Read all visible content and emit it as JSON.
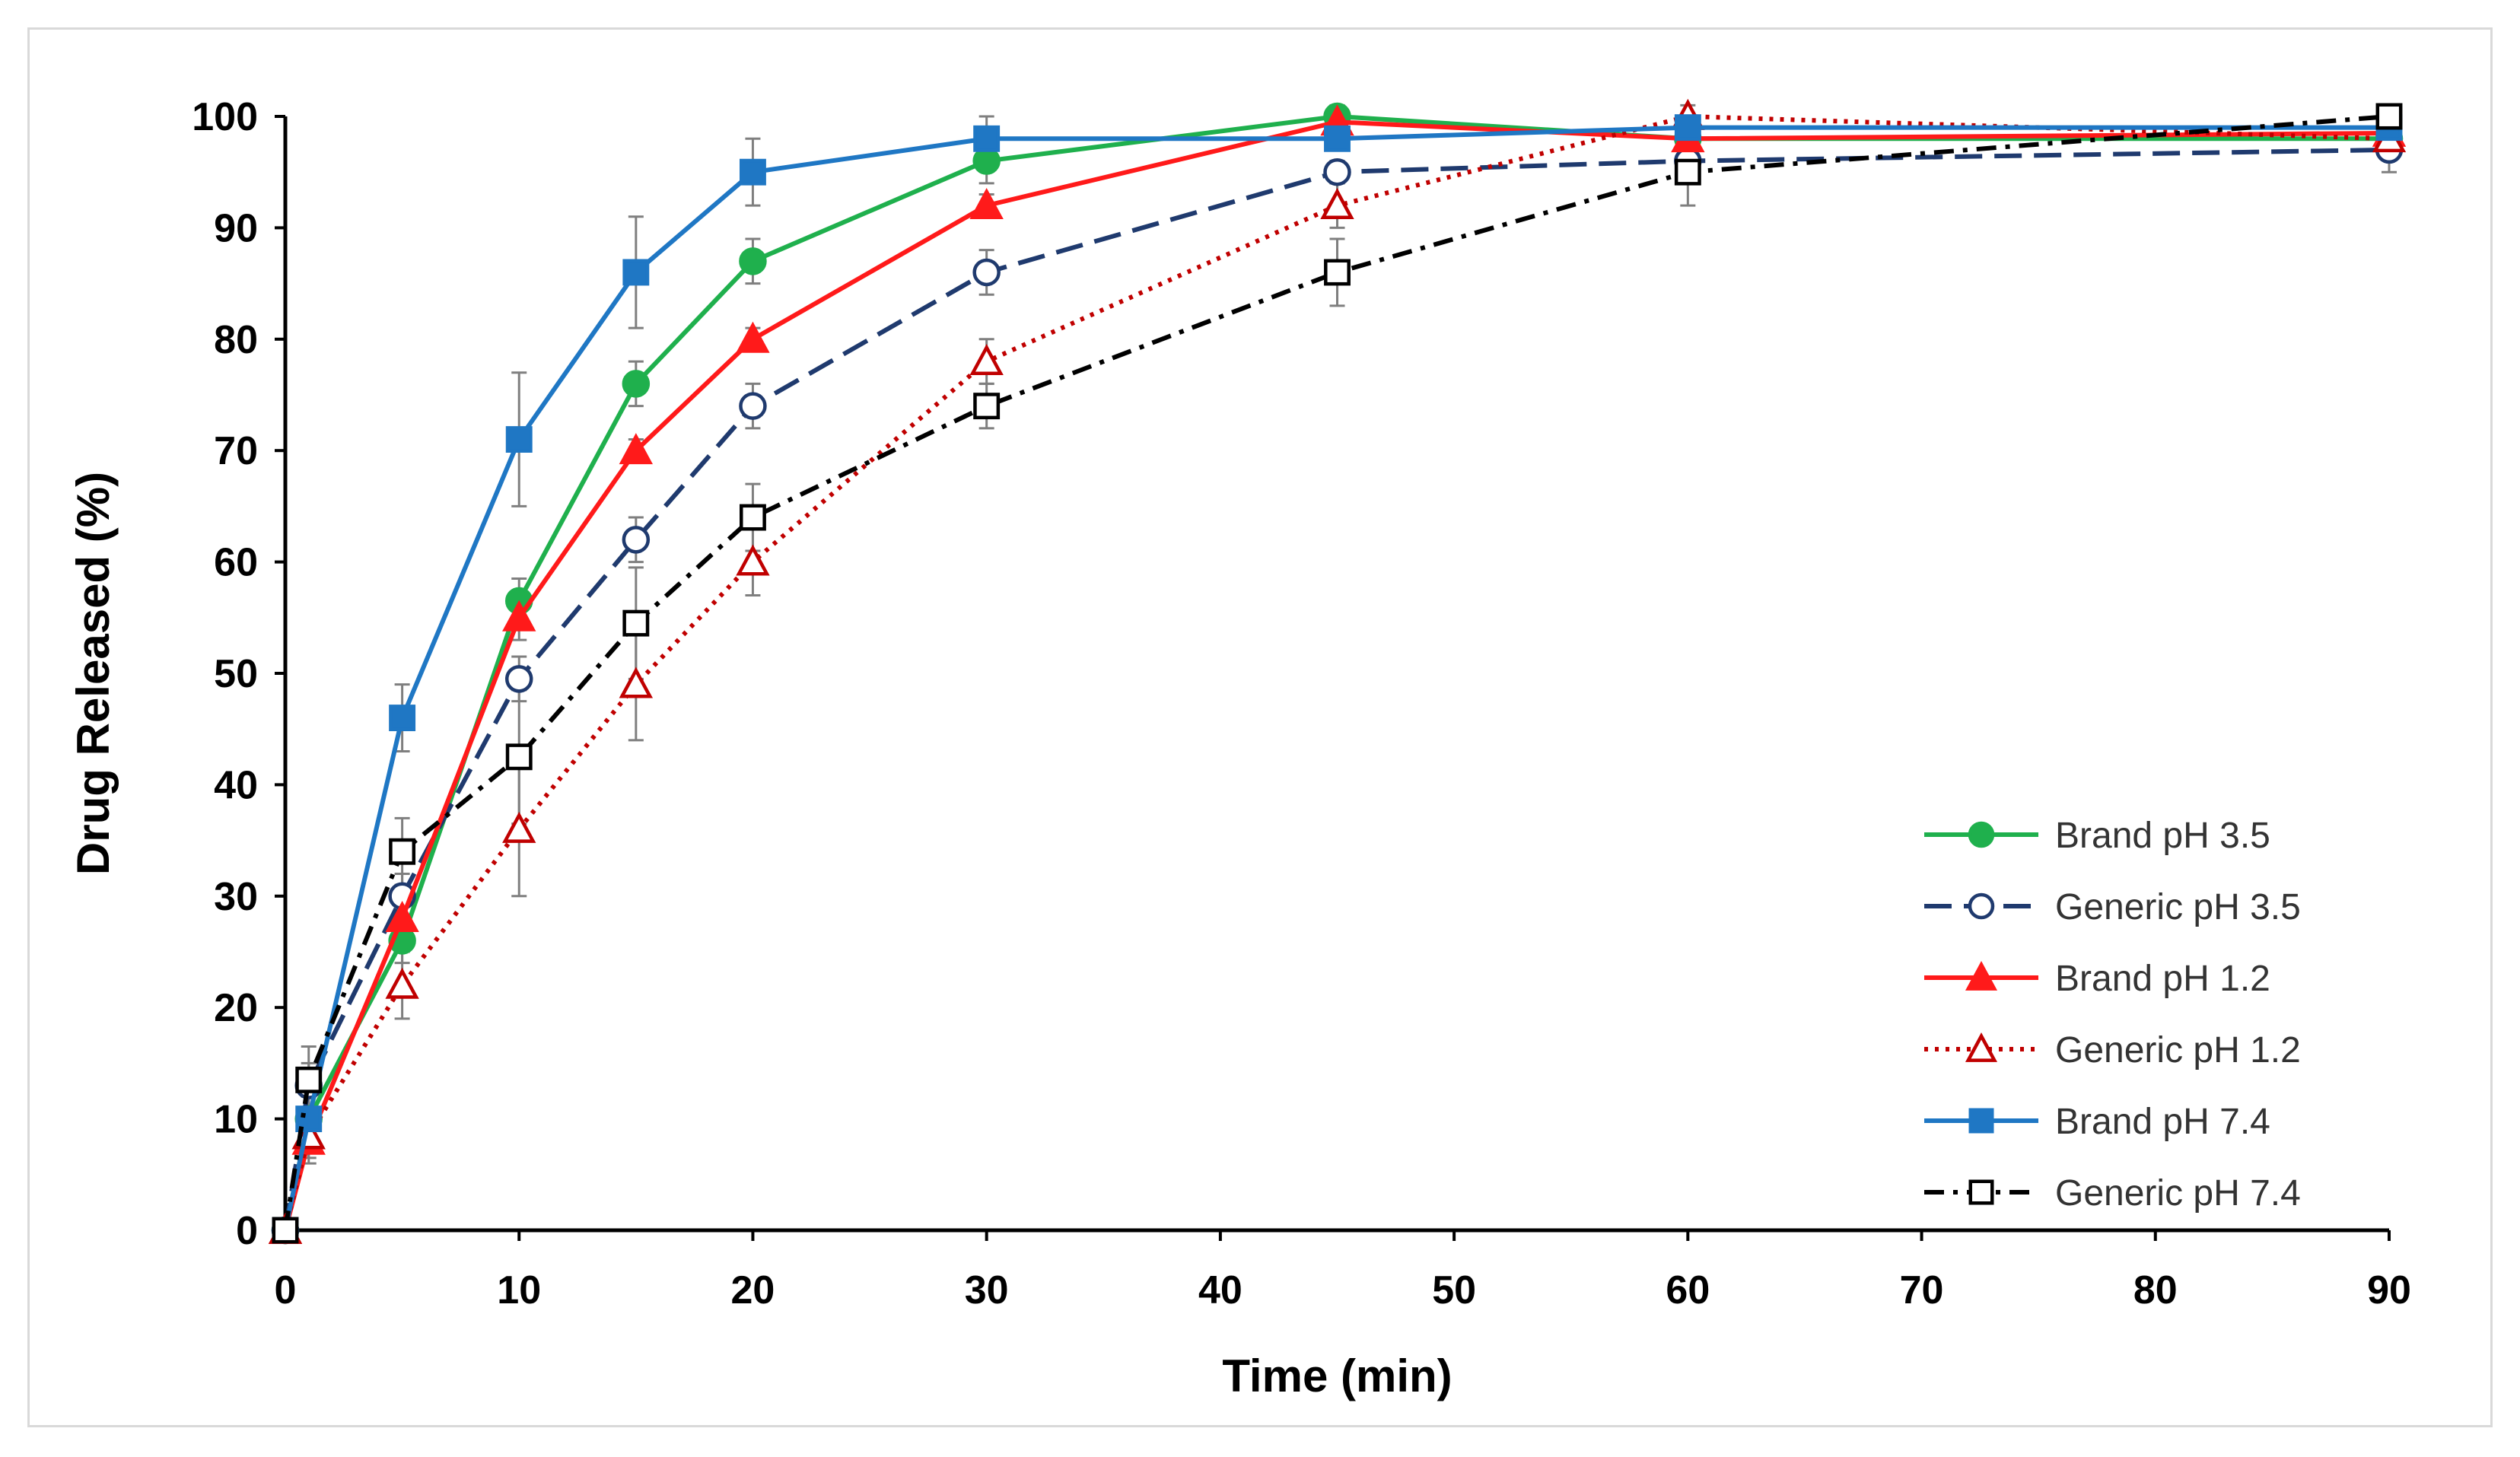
{
  "chart_data": {
    "type": "line",
    "title": "",
    "xlabel": "Time (min)",
    "ylabel": "Drug Released (%)",
    "xlim": [
      0,
      90
    ],
    "ylim": [
      0,
      100
    ],
    "xticks": [
      0,
      10,
      20,
      30,
      40,
      50,
      60,
      70,
      80,
      90
    ],
    "yticks": [
      0,
      10,
      20,
      30,
      40,
      50,
      60,
      70,
      80,
      90,
      100
    ],
    "grid": false,
    "legend_position": "bottom-right",
    "series": [
      {
        "name": "Brand pH 3.5",
        "color": "#1fb04d",
        "line": "solid",
        "marker": "circle",
        "marker_fill": "filled",
        "x": [
          0,
          1,
          5,
          10,
          15,
          20,
          30,
          45,
          60,
          90
        ],
        "y": [
          0,
          10,
          26,
          56.5,
          76,
          87,
          96,
          100,
          98,
          98
        ],
        "err": [
          0,
          2,
          2,
          2,
          2,
          2,
          2,
          1,
          1,
          1
        ]
      },
      {
        "name": "Generic pH 3.5",
        "color": "#1f3a6e",
        "line": "longdash",
        "marker": "circle",
        "marker_fill": "open",
        "x": [
          0,
          1,
          5,
          10,
          15,
          20,
          30,
          45,
          60,
          90
        ],
        "y": [
          0,
          13,
          30,
          49.5,
          62,
          74,
          86,
          95,
          96,
          97
        ],
        "err": [
          0,
          2,
          2,
          2,
          2,
          2,
          2,
          1,
          1,
          2
        ]
      },
      {
        "name": "Brand pH 1.2",
        "color": "#ff1a1a",
        "line": "solid",
        "marker": "triangle",
        "marker_fill": "filled",
        "x": [
          0,
          1,
          5,
          10,
          15,
          20,
          30,
          45,
          60,
          90
        ],
        "y": [
          0,
          8,
          28,
          55,
          70,
          80,
          92,
          99.5,
          98,
          98.5
        ],
        "err": [
          0,
          2,
          1.5,
          2,
          1,
          1,
          1,
          1,
          1,
          1
        ]
      },
      {
        "name": "Generic pH 1.2",
        "color": "#c00000",
        "line": "dotted",
        "marker": "triangle",
        "marker_fill": "open",
        "x": [
          0,
          1,
          5,
          10,
          15,
          20,
          30,
          45,
          60,
          90
        ],
        "y": [
          0,
          8.5,
          22,
          36,
          49,
          60,
          78,
          92,
          100,
          98
        ],
        "err": [
          0,
          2,
          3,
          6,
          5,
          3,
          2,
          2,
          1,
          1
        ]
      },
      {
        "name": "Brand pH 7.4",
        "color": "#1f77c4",
        "line": "solid",
        "marker": "square",
        "marker_fill": "filled",
        "x": [
          0,
          1,
          5,
          10,
          15,
          20,
          30,
          45,
          60,
          90
        ],
        "y": [
          0,
          10,
          46,
          71,
          86,
          95,
          98,
          98,
          99,
          99
        ],
        "err": [
          0,
          1,
          3,
          6,
          5,
          3,
          2,
          1,
          1,
          1
        ]
      },
      {
        "name": "Generic pH 7.4",
        "color": "#000000",
        "line": "dashdot",
        "marker": "square",
        "marker_fill": "open",
        "x": [
          0,
          1,
          5,
          10,
          15,
          20,
          30,
          45,
          60,
          90
        ],
        "y": [
          0,
          13.5,
          34,
          42.5,
          54.5,
          64,
          74,
          86,
          95,
          100
        ],
        "err": [
          0,
          3,
          3,
          6,
          5,
          3,
          2,
          3,
          3,
          1
        ]
      }
    ]
  }
}
